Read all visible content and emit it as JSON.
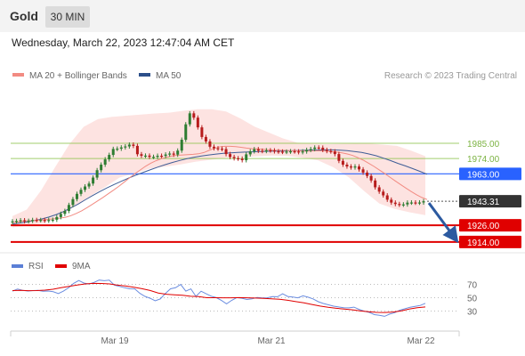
{
  "header": {
    "symbol": "Gold",
    "timeframe": "30 MIN"
  },
  "timestamp": "Wednesday, March 22, 2023 12:47:04 AM CET",
  "legend": [
    {
      "label": "MA 20 + Bollinger Bands",
      "color": "#f28b82"
    },
    {
      "label": "MA 50",
      "color": "#2c4f8a"
    }
  ],
  "credit": "Research © 2023 Trading Central",
  "price_levels": [
    {
      "label": "1985.00",
      "value": 1985,
      "color": "#8bc34a",
      "style": "text"
    },
    {
      "label": "1974.00",
      "value": 1974,
      "color": "#8bc34a",
      "style": "text"
    },
    {
      "label": "1963.00",
      "value": 1963,
      "color": "#2962ff",
      "style": "box"
    },
    {
      "label": "1943.31",
      "value": 1943.31,
      "color": "#333333",
      "style": "box"
    },
    {
      "label": "1926.00",
      "value": 1926,
      "color": "#e00000",
      "style": "box"
    },
    {
      "label": "1914.00",
      "value": 1914,
      "color": "#e00000",
      "style": "box"
    }
  ],
  "rsi_legend": [
    {
      "label": "RSI",
      "color": "#5b7fd6"
    },
    {
      "label": "9MA",
      "color": "#e00000"
    }
  ],
  "rsi_levels": [
    "70",
    "50",
    "30"
  ],
  "x_axis": [
    "Mar 19",
    "Mar 21",
    "Mar 22"
  ],
  "chart_data": {
    "type": "candlestick",
    "ylim": [
      1912,
      2024
    ],
    "candles_close": [
      1928.8,
      1929.1,
      1929.6,
      1928.9,
      1929.2,
      1929.8,
      1929.7,
      1929.8,
      1929.3,
      1929.8,
      1930.0,
      1931.9,
      1934.2,
      1936.3,
      1940.6,
      1944.8,
      1948.6,
      1951.5,
      1953.9,
      1956.0,
      1960.3,
      1965.6,
      1969.6,
      1973.4,
      1976.6,
      1980.9,
      1981.1,
      1982.0,
      1982.7,
      1984.0,
      1983.1,
      1977.1,
      1976.0,
      1976.1,
      1975.2,
      1975.2,
      1976.0,
      1975.9,
      1976.9,
      1977.6,
      1976.8,
      1979.7,
      1987.5,
      1998.6,
      2006.5,
      2003.4,
      1996.4,
      1989.5,
      1986.3,
      1982.5,
      1981.4,
      1981.1,
      1980.8,
      1977.2,
      1975.1,
      1974.2,
      1973.9,
      1972.8,
      1977.0,
      1979.2,
      1980.7,
      1979.6,
      1979.4,
      1979.9,
      1979.8,
      1979.2,
      1979.0,
      1978.8,
      1979.0,
      1979.2,
      1979.1,
      1978.6,
      1979.1,
      1980.2,
      1980.8,
      1981.9,
      1981.8,
      1980.2,
      1979.4,
      1979.1,
      1977.2,
      1972.3,
      1969.6,
      1968.3,
      1967.6,
      1968.3,
      1966.2,
      1963.9,
      1961.5,
      1958.2,
      1953.3,
      1950.2,
      1947.5,
      1944.4,
      1942.3,
      1941.3,
      1940.8,
      1941.0,
      1942.3,
      1942.4,
      1942.2,
      1942.4,
      1943.3
    ],
    "ma20": [
      1928.0,
      1928.4,
      1929.0,
      1929.3,
      1929.5,
      1929.8,
      1930.0,
      1930.4,
      1930.7,
      1931.2,
      1931.8,
      1932.9,
      1934.5,
      1936.4,
      1938.6,
      1941.0,
      1943.5,
      1946.0,
      1948.6,
      1951.2,
      1954.0,
      1957.0,
      1960.0,
      1963.0,
      1965.7,
      1968.4,
      1970.6,
      1972.4,
      1973.8,
      1975.0,
      1975.8,
      1976.3,
      1976.6,
      1976.8,
      1977.0,
      1977.4,
      1978.3,
      1979.9,
      1981.3,
      1982.4,
      1982.8,
      1982.8,
      1982.6,
      1982.1,
      1981.5,
      1981.1,
      1980.9,
      1980.7,
      1980.4,
      1980.0,
      1979.9,
      1979.9,
      1979.7,
      1979.6,
      1979.5,
      1979.4,
      1979.4,
      1979.5,
      1979.5,
      1979.3,
      1978.9,
      1978.6,
      1978.1,
      1977.3,
      1976.2,
      1974.6,
      1972.8,
      1970.6,
      1968.3,
      1965.8,
      1963.3,
      1960.6,
      1957.9,
      1955.3,
      1952.8,
      1950.3,
      1948.0,
      1946.0,
      1944.5
    ],
    "ma50": [
      1926.9,
      1927.6,
      1928.4,
      1929.4,
      1930.5,
      1931.9,
      1933.7,
      1935.8,
      1938.4,
      1941.2,
      1944.3,
      1947.3,
      1950.2,
      1952.9,
      1955.4,
      1957.7,
      1960.0,
      1962.1,
      1964.1,
      1966.0,
      1967.9,
      1969.6,
      1971.2,
      1972.6,
      1973.9,
      1975.0,
      1975.9,
      1976.6,
      1977.2,
      1977.7,
      1978.1,
      1978.4,
      1978.6,
      1978.8,
      1979.0,
      1979.2,
      1979.3,
      1979.4,
      1979.6,
      1979.7,
      1979.9,
      1980.0,
      1980.1,
      1980.2,
      1980.2,
      1980.0,
      1979.7,
      1979.1,
      1978.4,
      1977.3,
      1976.0,
      1974.3,
      1972.5,
      1970.5,
      1968.7,
      1966.8,
      1964.8,
      1962.7
    ],
    "bb_upper": [
      1932.6,
      1937.3,
      1950.9,
      1967.8,
      1984.3,
      1996.8,
      2002.3,
      2004.0,
      2004.8,
      2005.6,
      2006.4,
      2007.0,
      2008.3,
      2009.5,
      2009.5,
      2007.8,
      2002.9,
      1997.0,
      1992.7,
      1988.5,
      1985.4,
      1984.9,
      1984.3,
      1984.6,
      1984.9,
      1984.8,
      1984.0,
      1983.1,
      1979.7,
      1975.7
    ],
    "bb_lower": [
      1924.5,
      1925.7,
      1927.5,
      1932.0,
      1939.1,
      1946.4,
      1953.0,
      1960.3,
      1963.4,
      1966.8,
      1968.1,
      1969.7,
      1971.8,
      1973.1,
      1974.5,
      1975.0,
      1975.6,
      1976.1,
      1975.9,
      1974.6,
      1972.6,
      1967.6,
      1960.4,
      1950.5,
      1941.6,
      1937.7,
      1935.3,
      1933.3
    ],
    "forecast": {
      "from": 1943.31,
      "to": 1914,
      "direction": "down"
    },
    "rsi_series": [
      {
        "name": "RSI",
        "values": [
          59.9,
          62.9,
          61.1,
          60.0,
          60.7,
          61.0,
          59.6,
          60.0,
          58.9,
          56.3,
          59.9,
          64.8,
          71.4,
          75.7,
          72.0,
          70.6,
          73.0,
          76.4,
          75.5,
          76.3,
          68.8,
          67.0,
          65.0,
          63.3,
          63.2,
          56.6,
          52.0,
          49.2,
          45.3,
          48.2,
          56.4,
          63.3,
          65.0,
          69.8,
          59.8,
          63.2,
          52.0,
          59.7,
          55.8,
          52.3,
          50.1,
          45.8,
          40.8,
          46.0,
          50.2,
          49.2,
          47.3,
          48.3,
          50.4,
          49.6,
          49.9,
          51.6,
          51.5,
          55.8,
          51.8,
          50.9,
          49.8,
          52.8,
          50.8,
          48.1,
          44.0,
          41.3,
          39.3,
          37.3,
          36.1,
          35.0,
          34.8,
          35.8,
          32.6,
          29.8,
          28.0,
          24.7,
          23.6,
          22.2,
          25.5,
          27.6,
          31.3,
          33.4,
          35.7,
          37.1,
          38.4,
          41.6
        ]
      },
      {
        "name": "9MA",
        "values": [
          60.7,
          61.1,
          60.5,
          60.7,
          61.3,
          62.7,
          65.1,
          67.0,
          68.9,
          70.7,
          71.5,
          71.3,
          70.7,
          68.8,
          67.5,
          65.6,
          63.4,
          60.8,
          57.1,
          55.2,
          54.4,
          53.7,
          52.2,
          51.7,
          50.0,
          50.0,
          49.9,
          49.9,
          50.1,
          49.8,
          49.5,
          49.0,
          48.3,
          47.6,
          46.2,
          44.2,
          42.4,
          39.9,
          37.5,
          35.6,
          34.1,
          33.0,
          31.8,
          30.2,
          28.9,
          28.0,
          27.9,
          28.6,
          30.2,
          32.9,
          35.0,
          36.1
        ]
      }
    ]
  }
}
